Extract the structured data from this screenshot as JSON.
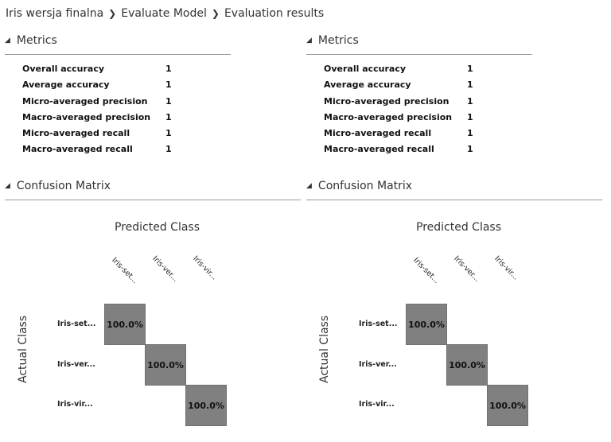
{
  "breadcrumb": {
    "items": [
      "Iris wersja finalna",
      "Evaluate Model",
      "Evaluation results"
    ],
    "separator": "❯"
  },
  "panels": [
    {
      "metrics_title": "Metrics",
      "metrics": [
        {
          "name": "Overall accuracy",
          "value": "1"
        },
        {
          "name": "Average accuracy",
          "value": "1"
        },
        {
          "name": "Micro-averaged precision",
          "value": "1"
        },
        {
          "name": "Macro-averaged precision",
          "value": "1"
        },
        {
          "name": "Micro-averaged recall",
          "value": "1"
        },
        {
          "name": "Macro-averaged recall",
          "value": "1"
        }
      ],
      "confusion_title": "Confusion Matrix",
      "predicted_label": "Predicted Class",
      "actual_label": "Actual Class",
      "columns": [
        "Iris-set...",
        "Iris-ver...",
        "Iris-vir..."
      ],
      "rows": [
        "Iris-set...",
        "Iris-ver...",
        "Iris-vir..."
      ],
      "diagonal": [
        "100.0%",
        "100.0%",
        "100.0%"
      ]
    },
    {
      "metrics_title": "Metrics",
      "metrics": [
        {
          "name": "Overall accuracy",
          "value": "1"
        },
        {
          "name": "Average accuracy",
          "value": "1"
        },
        {
          "name": "Micro-averaged precision",
          "value": "1"
        },
        {
          "name": "Macro-averaged precision",
          "value": "1"
        },
        {
          "name": "Micro-averaged recall",
          "value": "1"
        },
        {
          "name": "Macro-averaged recall",
          "value": "1"
        }
      ],
      "confusion_title": "Confusion Matrix",
      "predicted_label": "Predicted Class",
      "actual_label": "Actual Class",
      "columns": [
        "Iris-set...",
        "Iris-ver...",
        "Iris-vir..."
      ],
      "rows": [
        "Iris-set...",
        "Iris-ver...",
        "Iris-vir..."
      ],
      "diagonal": [
        "100.0%",
        "100.0%",
        "100.0%"
      ]
    }
  ],
  "icons": {
    "collapse": "collapse-triangle-icon",
    "separator": "chevron-right-icon"
  },
  "colors": {
    "cell": "#808080",
    "rule": "#999999"
  }
}
